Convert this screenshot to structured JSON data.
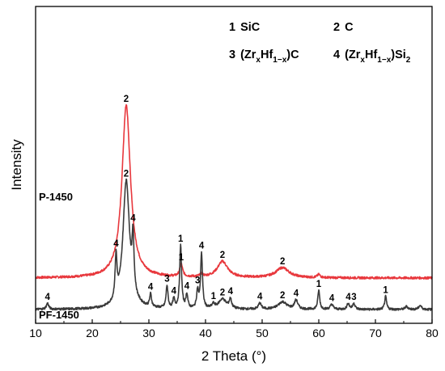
{
  "chart_data": {
    "type": "line",
    "xlabel": "2 Theta (°)",
    "ylabel": "Intensity",
    "xlim": [
      10,
      80
    ],
    "xticks": [
      "10",
      "20",
      "30",
      "40",
      "50",
      "60",
      "70",
      "80"
    ],
    "yticks": false,
    "grid": false,
    "legend_entries": [
      {
        "num": "1",
        "text": "SiC"
      },
      {
        "num": "2",
        "text": "C"
      },
      {
        "num": "3",
        "text": "(ZrxHf1−x)C",
        "parts": [
          "(Zr",
          "x",
          "Hf",
          "1−x",
          ")C"
        ]
      },
      {
        "num": "4",
        "text": "(ZrxHf1−x)Si2",
        "parts": [
          "(Zr",
          "x",
          "Hf",
          "1−x",
          ")Si",
          "2"
        ]
      }
    ],
    "series": [
      {
        "name": "P-1450",
        "color": "#e8383d",
        "baseline": 0.63,
        "peaks": [
          {
            "x": 26.0,
            "h": 3.45,
            "w": 0.9,
            "label": "2"
          },
          {
            "x": 35.7,
            "h": 0.25,
            "w": 0.3,
            "label": "1"
          },
          {
            "x": 39.3,
            "h": 0.05,
            "w": 0.3
          },
          {
            "x": 43.0,
            "h": 0.32,
            "w": 1.1,
            "label": "2"
          },
          {
            "x": 53.6,
            "h": 0.2,
            "w": 1.4,
            "label": "2"
          },
          {
            "x": 60.0,
            "h": 0.06,
            "w": 0.3
          }
        ]
      },
      {
        "name": "PF-1450",
        "color": "#3a3a3a",
        "baseline": 0.0,
        "peaks": [
          {
            "x": 12.1,
            "h": 0.12,
            "w": 0.25,
            "label": "4"
          },
          {
            "x": 24.2,
            "h": 0.85,
            "w": 0.2,
            "label": "4"
          },
          {
            "x": 26.0,
            "h": 2.55,
            "w": 0.7,
            "label": "2"
          },
          {
            "x": 27.2,
            "h": 1.05,
            "w": 0.2,
            "label": "4"
          },
          {
            "x": 30.3,
            "h": 0.25,
            "w": 0.2,
            "label": "4"
          },
          {
            "x": 33.2,
            "h": 0.45,
            "w": 0.2,
            "label": "3"
          },
          {
            "x": 34.4,
            "h": 0.18,
            "w": 0.2,
            "label": "4"
          },
          {
            "x": 35.6,
            "h": 1.25,
            "w": 0.2,
            "label": "1"
          },
          {
            "x": 36.7,
            "h": 0.28,
            "w": 0.2,
            "label": "4"
          },
          {
            "x": 38.6,
            "h": 0.35,
            "w": 0.2,
            "label": "3"
          },
          {
            "x": 39.3,
            "h": 1.1,
            "w": 0.2,
            "label": "4"
          },
          {
            "x": 41.4,
            "h": 0.08,
            "w": 0.3,
            "label": "1"
          },
          {
            "x": 43.0,
            "h": 0.2,
            "w": 0.8,
            "label": "2"
          },
          {
            "x": 44.4,
            "h": 0.18,
            "w": 0.25,
            "label": "4"
          },
          {
            "x": 49.6,
            "h": 0.12,
            "w": 0.3,
            "label": "4"
          },
          {
            "x": 53.6,
            "h": 0.15,
            "w": 0.9,
            "label": "2"
          },
          {
            "x": 56.0,
            "h": 0.18,
            "w": 0.35,
            "label": "4"
          },
          {
            "x": 60.0,
            "h": 0.38,
            "w": 0.2,
            "label": "1"
          },
          {
            "x": 62.3,
            "h": 0.1,
            "w": 0.3,
            "label": "4"
          },
          {
            "x": 65.2,
            "h": 0.12,
            "w": 0.25,
            "label": "4"
          },
          {
            "x": 66.2,
            "h": 0.12,
            "w": 0.25,
            "label": "3"
          },
          {
            "x": 71.8,
            "h": 0.26,
            "w": 0.2,
            "label": "1"
          },
          {
            "x": 75.5,
            "h": 0.06,
            "w": 0.3
          },
          {
            "x": 77.9,
            "h": 0.08,
            "w": 0.3
          }
        ]
      }
    ]
  }
}
